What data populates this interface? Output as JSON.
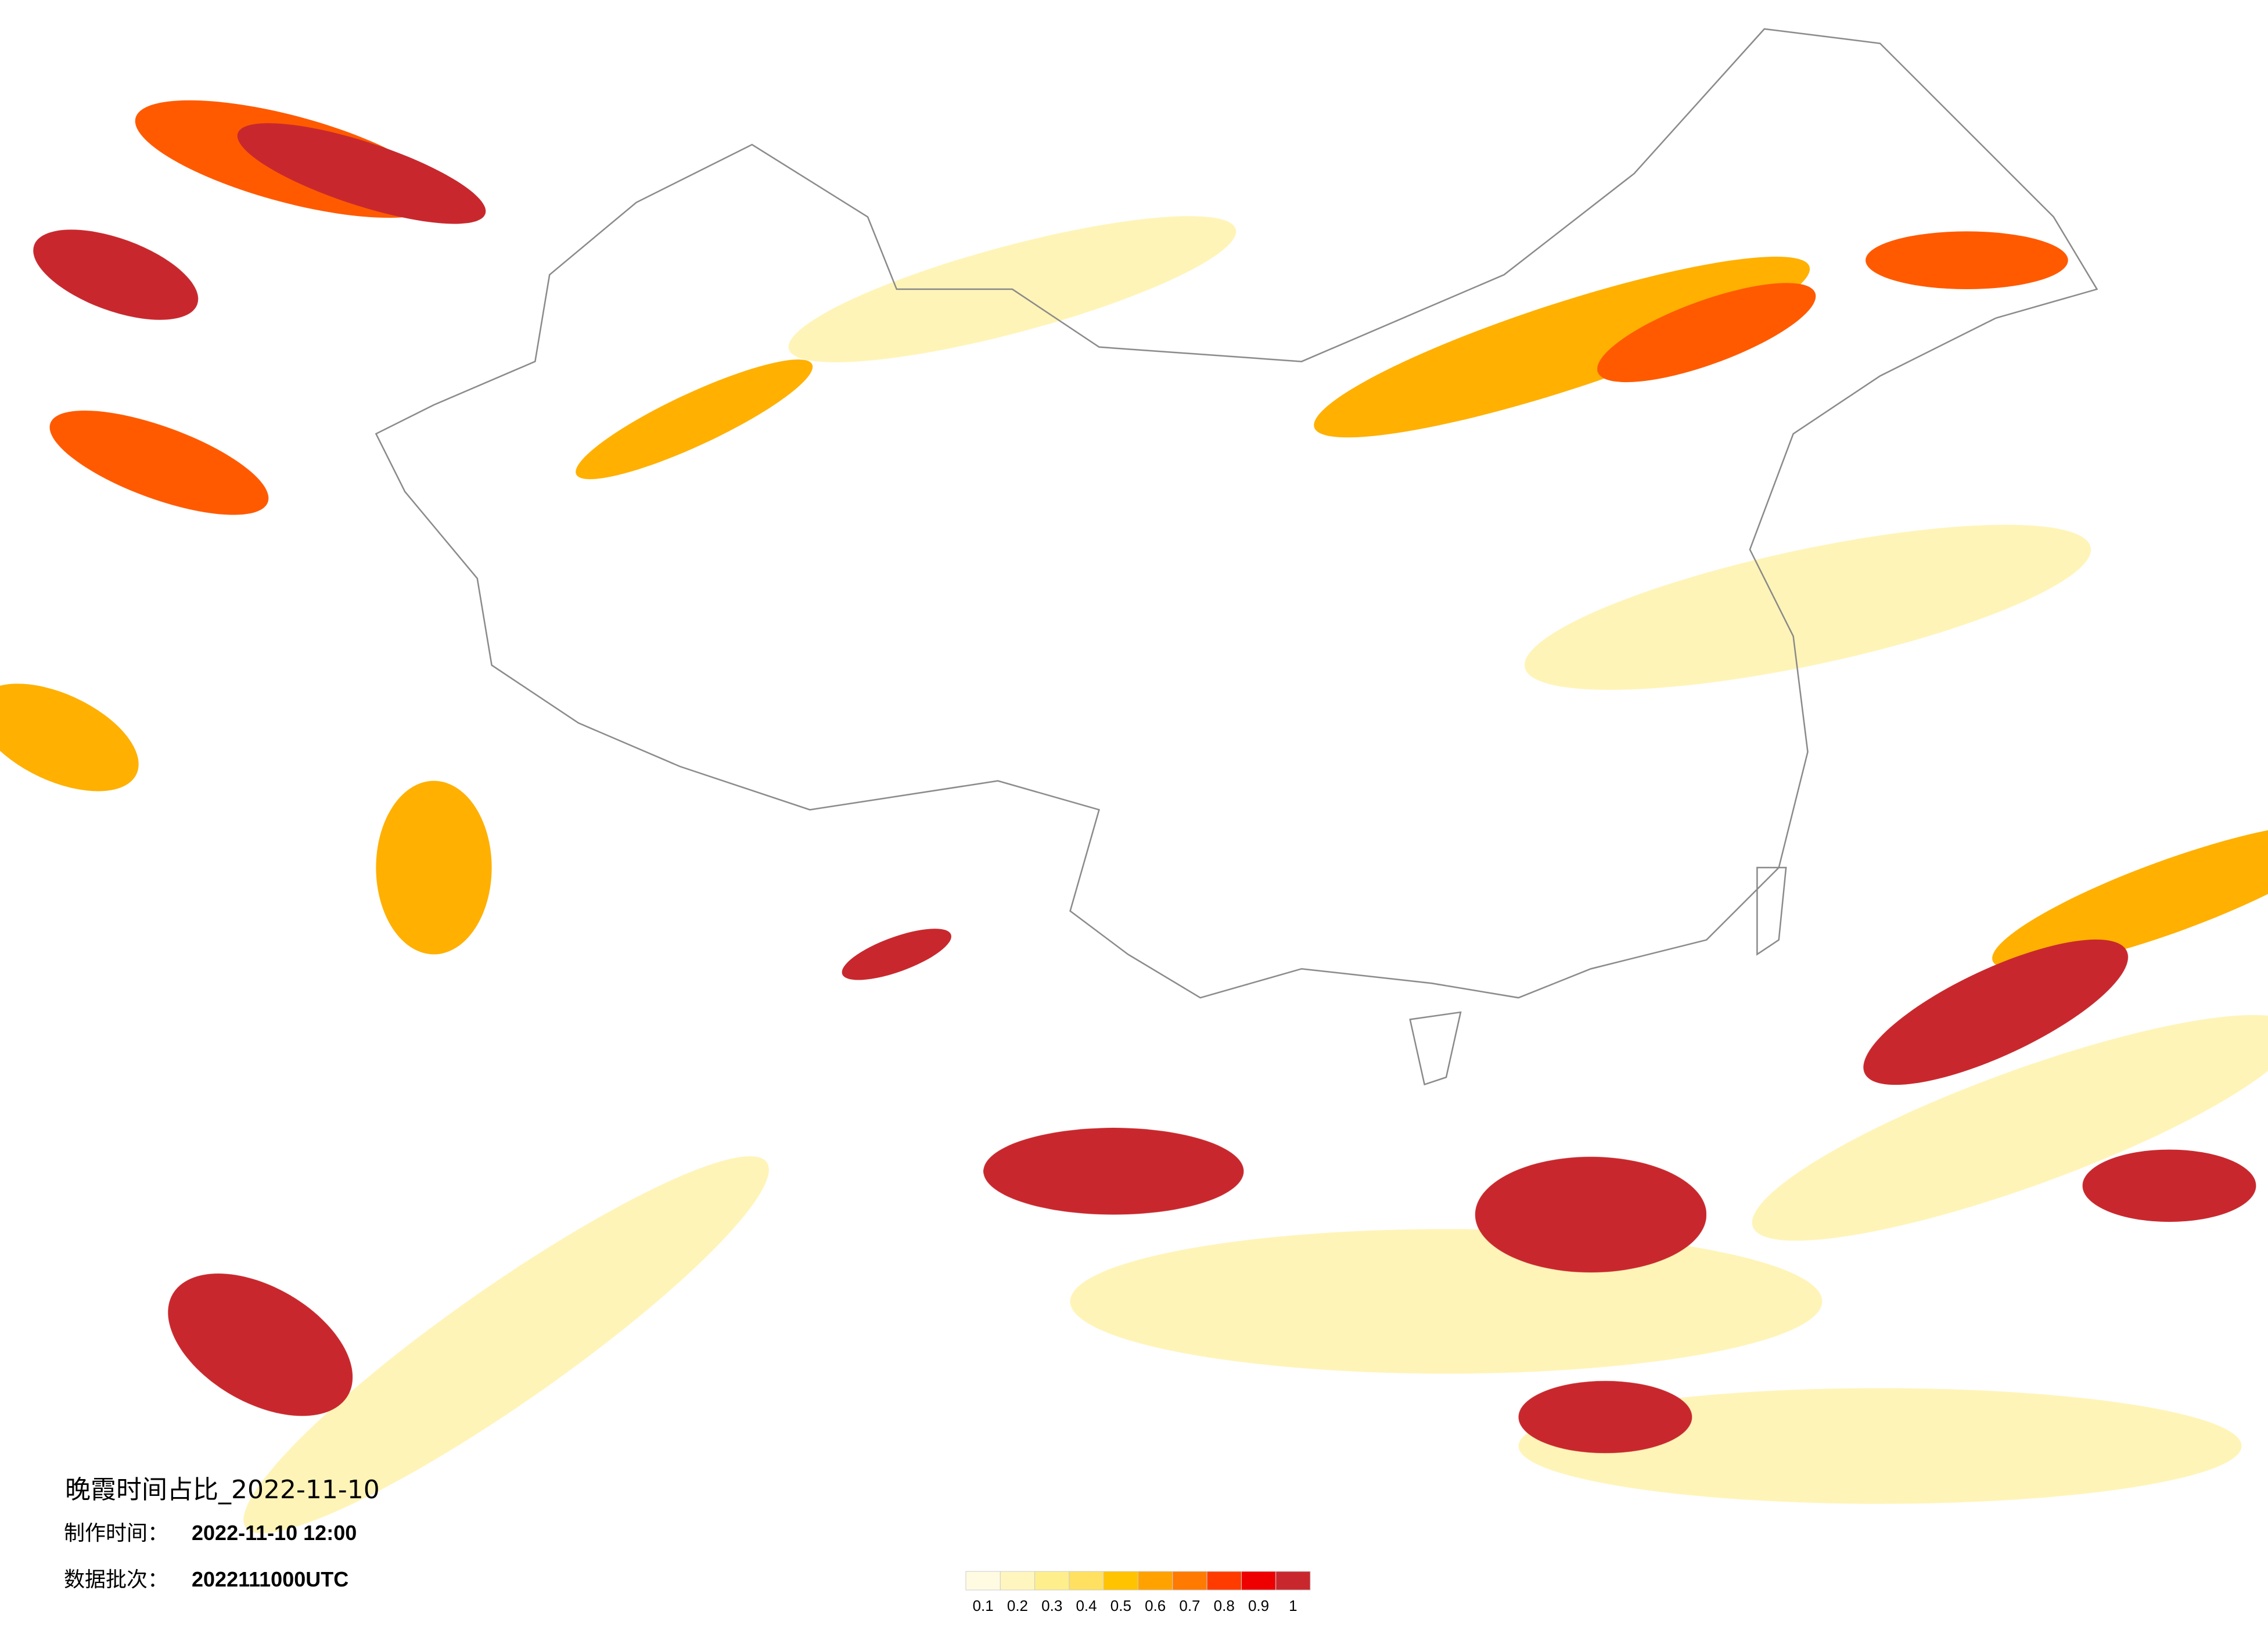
{
  "title": "晚霞时间占比_2022-11-10",
  "make_time_label": "制作时间：",
  "make_time": "2022-11-10 12:00",
  "batch_label": "数据批次：",
  "batch": "2022111000UTC",
  "legend": {
    "ticks": [
      0.1,
      0.2,
      0.3,
      0.4,
      0.5,
      0.6,
      0.7,
      0.8,
      0.9,
      1
    ],
    "colors": [
      "#fffbe3",
      "#fff6bf",
      "#ffee8c",
      "#ffe060",
      "#ffc300",
      "#ffa200",
      "#ff7a00",
      "#ff3b00",
      "#ee0000",
      "#c8282d"
    ]
  }
}
